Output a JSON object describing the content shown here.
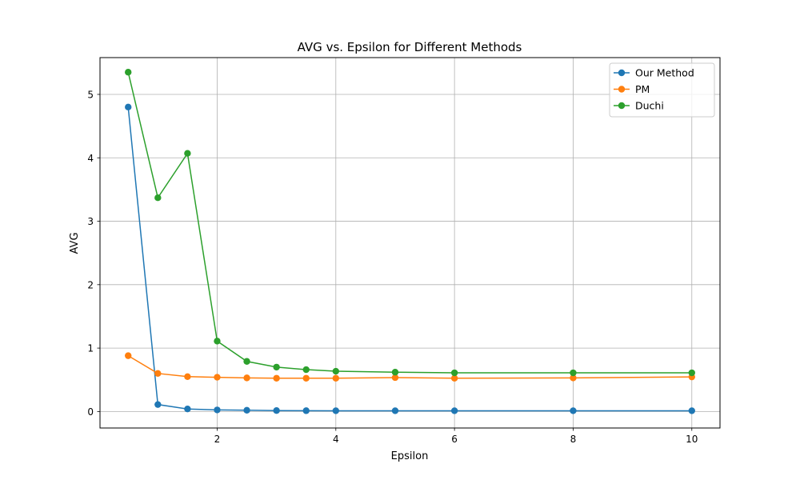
{
  "chart_data": {
    "type": "line",
    "title": "AVG vs. Epsilon for Different Methods",
    "xlabel": "Epsilon",
    "ylabel": "AVG",
    "xlim": [
      0.025,
      10.475
    ],
    "ylim": [
      -0.26,
      5.58
    ],
    "xticks": [
      2,
      4,
      6,
      8,
      10
    ],
    "yticks": [
      0,
      1,
      2,
      3,
      4,
      5
    ],
    "grid": true,
    "legend_position": "top-right",
    "x": [
      0.5,
      1,
      1.5,
      2,
      2.5,
      3,
      3.5,
      4,
      5,
      6,
      8,
      10
    ],
    "series": [
      {
        "name": "Our Method",
        "color": "#1f77b4",
        "values": [
          4.8,
          0.11,
          0.04,
          0.025,
          0.02,
          0.015,
          0.013,
          0.012,
          0.012,
          0.012,
          0.012,
          0.012
        ]
      },
      {
        "name": "PM",
        "color": "#ff7f0e",
        "values": [
          0.88,
          0.6,
          0.55,
          0.54,
          0.53,
          0.525,
          0.525,
          0.525,
          0.535,
          0.525,
          0.53,
          0.545
        ]
      },
      {
        "name": "Duchi",
        "color": "#2ca02c",
        "values": [
          5.35,
          3.37,
          4.07,
          1.11,
          0.79,
          0.7,
          0.66,
          0.635,
          0.62,
          0.61,
          0.61,
          0.61
        ]
      }
    ]
  }
}
